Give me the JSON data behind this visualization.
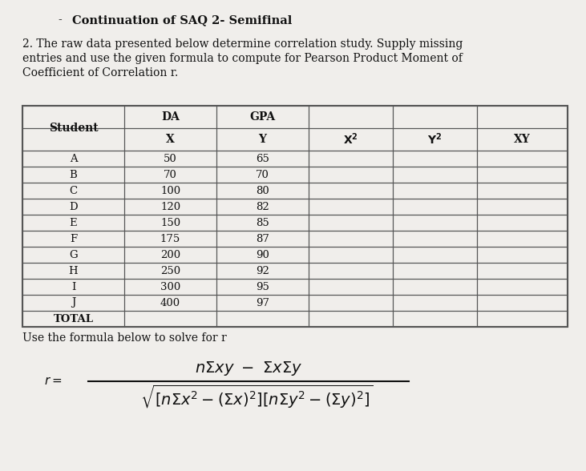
{
  "title_dash": "-",
  "title_text": "Continuation of SAQ 2- Semifinal",
  "paragraph": "2. The raw data presented below determine correlation study. Supply missing\nentries and use the given formula to compute for Pearson Product Moment of\nCoefficient of Correlation r.",
  "rows": [
    [
      "A",
      "50",
      "65",
      "",
      "",
      ""
    ],
    [
      "B",
      "70",
      "70",
      "",
      "",
      ""
    ],
    [
      "C",
      "100",
      "80",
      "",
      "",
      ""
    ],
    [
      "D",
      "120",
      "82",
      "",
      "",
      ""
    ],
    [
      "E",
      "150",
      "85",
      "",
      "",
      ""
    ],
    [
      "F",
      "175",
      "87",
      "",
      "",
      ""
    ],
    [
      "G",
      "200",
      "90",
      "",
      "",
      ""
    ],
    [
      "H",
      "250",
      "92",
      "",
      "",
      ""
    ],
    [
      "I",
      "300",
      "95",
      "",
      "",
      ""
    ],
    [
      "J",
      "400",
      "97",
      "",
      "",
      ""
    ]
  ],
  "formula_label": "Use the formula below to solve for r",
  "bg_color": "#e8e8e4",
  "paper_color": "#f0eeeb",
  "text_color": "#111111",
  "table_line_color": "#555555"
}
